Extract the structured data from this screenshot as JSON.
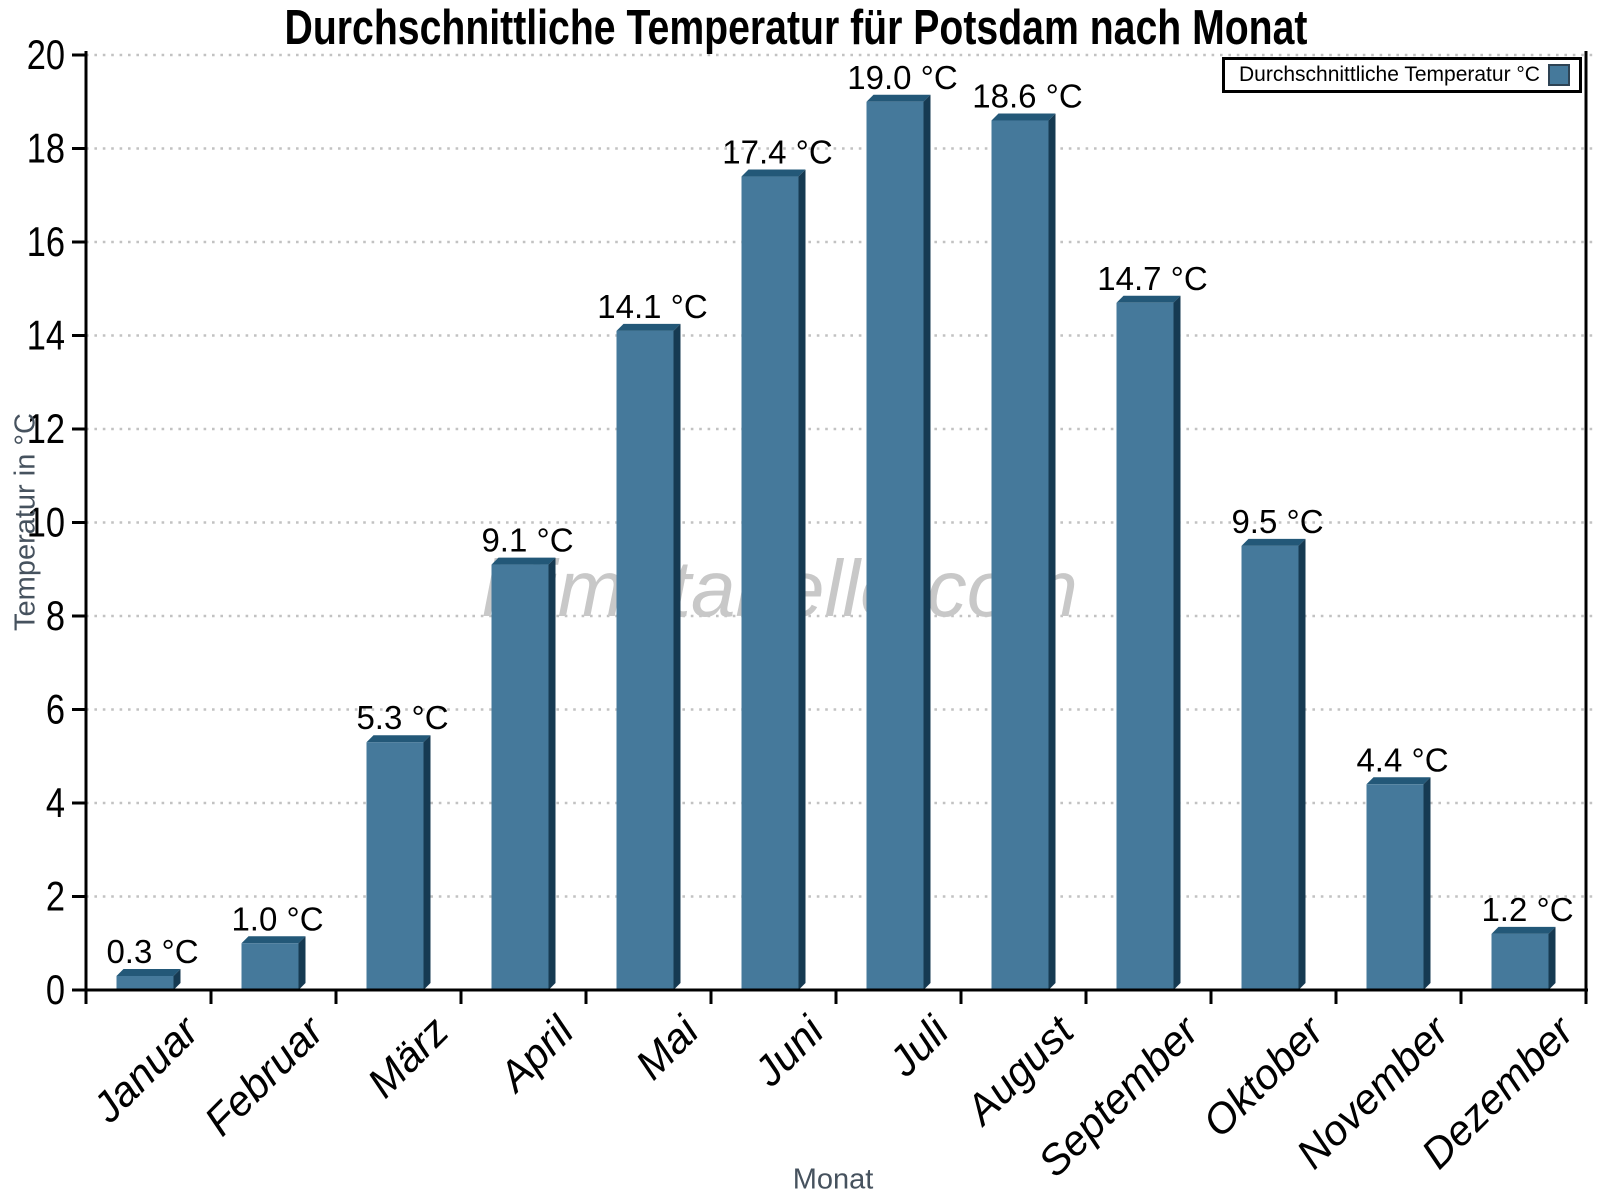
{
  "title": "Durchschnittliche Temperatur für Potsdam nach Monat",
  "watermark": "klimatabelle.com",
  "legend": {
    "label": "Durchschnittliche Temperatur °C"
  },
  "x_axis_title": "Monat",
  "y_axis_title": "Temperatur in °C",
  "colors": {
    "bar_face": "#45799B",
    "bar_top": "#235878",
    "bar_side": "#163A52",
    "grid": "#c2c2c2",
    "axis": "#000000",
    "tick_label": "#000000",
    "value_label": "#000000",
    "axis_title": "#46525E",
    "watermark": "#c8c8c8",
    "legend_border": "#000000",
    "legend_swatch_border": "#2e4354"
  },
  "chart_data": {
    "type": "bar",
    "title": "Durchschnittliche Temperatur für Potsdam nach Monat",
    "series_name": "Durchschnittliche Temperatur °C",
    "categories": [
      "Januar",
      "Februar",
      "März",
      "April",
      "Mai",
      "Juni",
      "Juli",
      "August",
      "September",
      "Oktober",
      "November",
      "Dezember"
    ],
    "values": [
      0.3,
      1.0,
      5.3,
      9.1,
      14.1,
      17.4,
      19.0,
      18.6,
      14.7,
      9.5,
      4.4,
      1.2
    ],
    "unit": "°C",
    "xlabel": "Monat",
    "ylabel": "Temperatur in °C",
    "ylim": [
      0,
      20
    ],
    "ytick_step": 2,
    "yticks": [
      0,
      2,
      4,
      6,
      8,
      10,
      12,
      14,
      16,
      18,
      20
    ],
    "grid": "horizontal-dotted",
    "legend_position": "top-right",
    "bar_style": "3d-extruded",
    "bar_color": "#45799B"
  }
}
